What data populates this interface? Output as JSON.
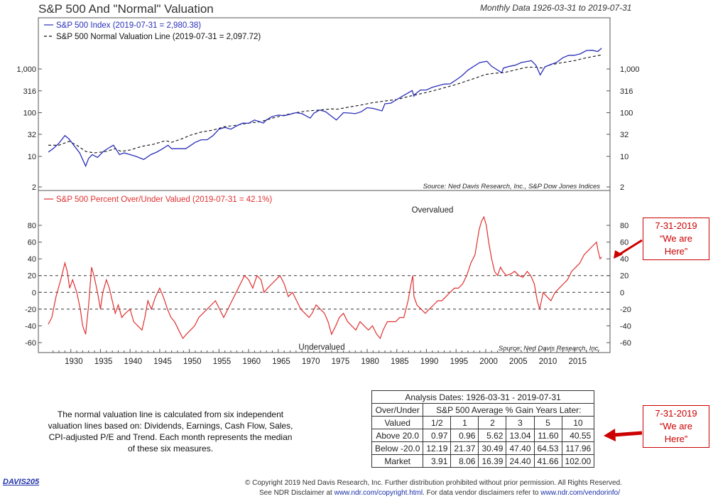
{
  "header": {
    "title": "S&P 500 And \"Normal\" Valuation",
    "date_range": "Monthly Data 1926-03-31 to 2019-07-31"
  },
  "chart_data": [
    {
      "type": "line",
      "scale": "log",
      "legend": [
        {
          "label": "S&P 500 Index (2019-07-31 = 2,980.38)",
          "color": "#2a2fb8",
          "style": "solid"
        },
        {
          "label": "S&P 500 Normal Valuation Line (2019-07-31 = 2,097.72)",
          "color": "#111111",
          "style": "dashed"
        }
      ],
      "y_ticks": [
        2,
        10,
        32,
        100,
        316,
        1000
      ],
      "y_tick_labels": [
        "2",
        "10",
        "32",
        "100",
        "316",
        "1,000"
      ],
      "ylim": [
        2,
        3400
      ],
      "source": "Source:  Ned Davis Research, Inc., S&P Dow Jones Indices",
      "series": [
        {
          "name": "S&P 500 Index",
          "x": [
            1926.2,
            1927,
            1928,
            1929,
            1929.7,
            1930.5,
            1931.5,
            1932.5,
            1933,
            1933.6,
            1934.5,
            1935.5,
            1936.5,
            1937.2,
            1938.2,
            1939,
            1940,
            1941,
            1942.3,
            1943.5,
            1944.5,
            1945.5,
            1946.4,
            1947,
            1948,
            1949.4,
            1950,
            1951,
            1952,
            1953,
            1954,
            1955,
            1956,
            1957,
            1958,
            1959,
            1960,
            1961,
            1962.5,
            1963,
            1964,
            1965,
            1966,
            1967,
            1968,
            1969,
            1970.4,
            1971,
            1972,
            1973,
            1974.8,
            1975.5,
            1976,
            1977,
            1978,
            1979,
            1980,
            1981,
            1982.5,
            1983,
            1984,
            1985,
            1986,
            1987.6,
            1987.9,
            1988,
            1989,
            1990,
            1991,
            1992,
            1993,
            1994,
            1995,
            1996,
            1997,
            1998,
            1999,
            2000.2,
            2001,
            2002.7,
            2003,
            2004,
            2005,
            2006,
            2007.7,
            2008.5,
            2009.2,
            2010,
            2011,
            2012,
            2013,
            2014,
            2015,
            2016,
            2017,
            2018,
            2018.9,
            2019.55
          ],
          "values": [
            12.5,
            15,
            20,
            30,
            25,
            18,
            12,
            6,
            9,
            11,
            9.5,
            13,
            16,
            18,
            11,
            12,
            11,
            10,
            8.5,
            11,
            12.5,
            15,
            18,
            15,
            15,
            15,
            17,
            21,
            24,
            24,
            30,
            42,
            46,
            42,
            50,
            58,
            57,
            68,
            58,
            68,
            82,
            88,
            85,
            92,
            100,
            95,
            75,
            97,
            115,
            105,
            68,
            85,
            100,
            98,
            95,
            105,
            130,
            125,
            110,
            160,
            165,
            200,
            240,
            320,
            240,
            260,
            330,
            330,
            380,
            415,
            450,
            455,
            560,
            700,
            940,
            1150,
            1400,
            1500,
            1150,
            820,
            1050,
            1150,
            1220,
            1400,
            1550,
            1200,
            730,
            1120,
            1270,
            1420,
            1800,
            2050,
            2060,
            2230,
            2650,
            2680,
            2500,
            2980
          ]
        },
        {
          "name": "S&P 500 Normal Valuation Line",
          "x": [
            1926.2,
            1928,
            1929.7,
            1931,
            1932.5,
            1934,
            1936,
            1937.5,
            1938.5,
            1940,
            1942,
            1944,
            1946,
            1947,
            1949,
            1950,
            1952,
            1954,
            1956,
            1958,
            1960,
            1962,
            1964,
            1966,
            1968,
            1970,
            1972,
            1974,
            1975,
            1977,
            1979,
            1981,
            1983,
            1985,
            1987,
            1990,
            1992,
            1995,
            1998,
            2000,
            2001.5,
            2003,
            2005,
            2007,
            2008.5,
            2009.5,
            2011,
            2013,
            2015,
            2017,
            2019.55
          ],
          "values": [
            18,
            18,
            22,
            18,
            13,
            12,
            13,
            15,
            13,
            14,
            17,
            19,
            23,
            21,
            26,
            30,
            36,
            40,
            48,
            52,
            58,
            62,
            75,
            88,
            100,
            110,
            115,
            122,
            120,
            135,
            150,
            170,
            185,
            200,
            235,
            290,
            340,
            440,
            600,
            750,
            800,
            820,
            950,
            1100,
            1100,
            1050,
            1250,
            1400,
            1550,
            1800,
            2097.72
          ]
        }
      ]
    },
    {
      "type": "line",
      "legend": [
        {
          "label": "S&P 500 Percent Over/Under Valued (2019-07-31 = 42.1%)",
          "color": "#e03030",
          "style": "solid"
        }
      ],
      "y_ticks": [
        -60,
        -40,
        -20,
        0,
        20,
        40,
        60,
        80
      ],
      "ylim": [
        -68,
        95
      ],
      "reference_lines": [
        20,
        0,
        -20
      ],
      "annotations": [
        "Overvalued",
        "Undervalued"
      ],
      "source": "Source:  Ned Davis Research, Inc.",
      "x_ticks": [
        1930,
        1935,
        1940,
        1945,
        1950,
        1955,
        1960,
        1965,
        1970,
        1975,
        1980,
        1985,
        1990,
        1995,
        2000,
        2005,
        2010,
        2015
      ],
      "xlim": [
        1925.6,
        2019.9
      ],
      "series": [
        {
          "name": "S&P 500 Percent Over/Under Valued",
          "x": [
            1926.2,
            1926.8,
            1927.5,
            1928.3,
            1929,
            1929.4,
            1929.8,
            1930.3,
            1931,
            1931.6,
            1932,
            1932.5,
            1933,
            1933.5,
            1933.9,
            1934.5,
            1935,
            1935.4,
            1936,
            1936.5,
            1937,
            1937.5,
            1938,
            1938.6,
            1939.2,
            1940,
            1940.6,
            1941.3,
            1942,
            1942.5,
            1943,
            1943.6,
            1944.3,
            1945,
            1945.6,
            1946.3,
            1946.9,
            1947.5,
            1948.2,
            1948.9,
            1949.5,
            1950.2,
            1950.9,
            1951.6,
            1952.3,
            1953,
            1953.7,
            1954.4,
            1955.1,
            1955.8,
            1956.5,
            1957.2,
            1957.9,
            1958.6,
            1959.3,
            1960,
            1960.7,
            1961.4,
            1962.1,
            1962.6,
            1963.2,
            1963.9,
            1964.6,
            1965.3,
            1966,
            1966.7,
            1967.4,
            1968.1,
            1968.8,
            1969.5,
            1970.2,
            1970.7,
            1971.4,
            1972.1,
            1972.8,
            1973.4,
            1974,
            1974.7,
            1975.3,
            1976,
            1976.7,
            1977.4,
            1978.1,
            1978.8,
            1979.5,
            1980.2,
            1980.9,
            1981.6,
            1982.2,
            1982.7,
            1983.4,
            1984.1,
            1984.8,
            1985.5,
            1986.2,
            1986.9,
            1987.4,
            1987.7,
            1987.9,
            1988.4,
            1989.1,
            1989.8,
            1990.5,
            1991.2,
            1991.9,
            1992.6,
            1993.3,
            1994,
            1994.7,
            1995.4,
            1996.1,
            1996.8,
            1997.5,
            1998.2,
            1998.9,
            1999.3,
            1999.7,
            2000.1,
            2000.5,
            2001,
            2001.5,
            2002,
            2002.5,
            2002.9,
            2003.5,
            2004.2,
            2004.9,
            2005.6,
            2006.3,
            2007,
            2007.6,
            2008.2,
            2008.7,
            2009.1,
            2009.7,
            2010.3,
            2011,
            2011.7,
            2012.4,
            2013.1,
            2013.8,
            2014.5,
            2015.2,
            2015.9,
            2016.6,
            2017.3,
            2018,
            2018.7,
            2018.95,
            2019.3,
            2019.55
          ],
          "values": [
            -38,
            -30,
            -5,
            15,
            35,
            25,
            5,
            15,
            0,
            -20,
            -40,
            -50,
            -15,
            30,
            20,
            0,
            -20,
            0,
            15,
            5,
            -10,
            -25,
            -15,
            -30,
            -25,
            -20,
            -35,
            -40,
            -45,
            -30,
            -10,
            -20,
            -5,
            5,
            -5,
            -20,
            -30,
            -35,
            -45,
            -55,
            -50,
            -45,
            -40,
            -30,
            -25,
            -20,
            -15,
            -10,
            -20,
            -30,
            -20,
            -10,
            0,
            10,
            20,
            15,
            5,
            20,
            15,
            0,
            5,
            10,
            15,
            20,
            10,
            -5,
            0,
            -10,
            -20,
            -25,
            -30,
            -25,
            -15,
            -20,
            -25,
            -35,
            -50,
            -40,
            -30,
            -25,
            -35,
            -40,
            -45,
            -35,
            -40,
            -45,
            -40,
            -50,
            -55,
            -45,
            -35,
            -35,
            -35,
            -30,
            -30,
            -10,
            10,
            20,
            -5,
            -15,
            -20,
            -25,
            -20,
            -15,
            -10,
            -10,
            -5,
            0,
            5,
            5,
            10,
            20,
            35,
            45,
            75,
            85,
            90,
            80,
            60,
            40,
            25,
            20,
            30,
            25,
            20,
            22,
            25,
            20,
            18,
            25,
            20,
            10,
            -10,
            -20,
            0,
            -5,
            -10,
            0,
            5,
            10,
            15,
            25,
            30,
            35,
            45,
            50,
            55,
            60,
            50,
            40,
            42.1
          ]
        }
      ]
    }
  ],
  "note": "The normal valuation line is calculated from six independent valuation lines based on: Dividends, Earnings, Cash Flow, Sales, CPI-adjusted P/E and Trend. Each month represents the median of these six measures.",
  "table": {
    "caption": "Analysis Dates: 1926-03-31 - 2019-07-31",
    "col_header_label_1": "Over/Under",
    "col_header_label_2": "Valued",
    "group_header": "S&P 500 Average % Gain Years Later:",
    "columns": [
      "1/2",
      "1",
      "2",
      "3",
      "5",
      "10"
    ],
    "rows": [
      {
        "label": "Above 20.0",
        "values": [
          "0.97",
          "0.96",
          "5.62",
          "13.04",
          "11.60",
          "40.55"
        ]
      },
      {
        "label": "Below -20.0",
        "values": [
          "12.19",
          "21.37",
          "30.49",
          "47.40",
          "64.53",
          "117.96"
        ]
      },
      {
        "label": "Market",
        "values": [
          "3.91",
          "8.06",
          "16.39",
          "24.40",
          "41.66",
          "102.00"
        ]
      }
    ]
  },
  "callouts": [
    {
      "date": "7-31-2019",
      "line2": "“We are",
      "line3": "Here”"
    },
    {
      "date": "7-31-2019",
      "line2": "“We are",
      "line3": "Here”"
    }
  ],
  "footer": {
    "code": "DAVIS205",
    "copyright": "© Copyright 2019 Ned Davis Research, Inc. Further distribution prohibited without prior permission. All Rights Reserved.",
    "disclaimer_prefix": "See NDR Disclaimer at ",
    "disclaimer_link1": "www.ndr.com/copyright.html",
    "disclaimer_mid": ". For data vendor disclaimers refer to ",
    "disclaimer_link2": "www.ndr.com/vendorinfo/"
  },
  "colors": {
    "index_line": "#2a2fb8",
    "normal_line": "#111111",
    "valuation_line": "#e03030",
    "callout": "#cc0000"
  }
}
